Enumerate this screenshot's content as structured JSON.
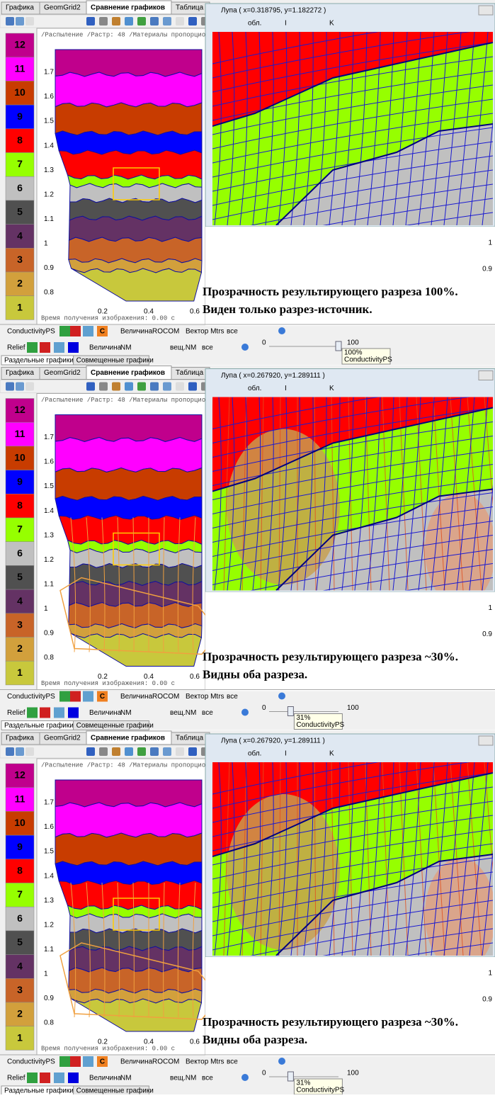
{
  "tabs": [
    "Графика",
    "GeomGrid2",
    "Сравнение графиков",
    "Таблица"
  ],
  "active_tab": 2,
  "plot_header": "/Распыление /Растр: 48 /Материалы пропорционально",
  "x_ticks": [
    0.2,
    0.4,
    0.6
  ],
  "y_ticks": [
    1.7,
    1.6,
    1.5,
    1.4,
    1.3,
    1.2,
    1.1,
    1,
    0.9,
    0.8
  ],
  "time_label": "Время получения изображения: 0.00 с",
  "legend": [
    {
      "label": "12",
      "color": "#c0008c"
    },
    {
      "label": "11",
      "color": "#ff00ff"
    },
    {
      "label": "10",
      "color": "#c83c00"
    },
    {
      "label": "9",
      "color": "#0000ff"
    },
    {
      "label": "8",
      "color": "#ff0000"
    },
    {
      "label": "7",
      "color": "#96ff00"
    },
    {
      "label": "6",
      "color": "#c0c0c0"
    },
    {
      "label": "5",
      "color": "#505050"
    },
    {
      "label": "4",
      "color": "#643264"
    },
    {
      "label": "3",
      "color": "#c86428"
    },
    {
      "label": "2",
      "color": "#d2a03c"
    },
    {
      "label": "1",
      "color": "#c8c83c"
    }
  ],
  "magnifier_toolbar": [
    "обл.",
    "I",
    "K"
  ],
  "magnifier_ticks": [
    1,
    0.9
  ],
  "toolbar1": [
    "ConductivityPS",
    "C",
    "Величина",
    "ROCOM",
    "Вектор Mtrs",
    "все"
  ],
  "toolbar2": [
    "Relief",
    "Величина",
    "NM",
    "вещ.NM",
    "все"
  ],
  "slider_min": 0,
  "slider_max": 100,
  "bottom_tabs": [
    "Раздельные графики",
    "Совмещенные графики"
  ],
  "panels": [
    {
      "title": "Лупа ( x=0.318795, y=1.182272 )",
      "caption": [
        "Прозрачность результирующего разреза 100%.",
        "Виден только разрез-источник."
      ],
      "slider": {
        "value": 100,
        "label": "100%"
      }
    },
    {
      "title": "Лупа ( x=0.267920, y=1.289111 )",
      "caption": [
        "Прозрачность результирующего разреза ~30%.",
        "Видны  оба разреза."
      ],
      "slider": {
        "value": 31,
        "label": "31%"
      }
    },
    {
      "title": "Лупа ( x=0.267920, y=1.289111 )",
      "caption": [
        "Прозрачность результирующего разреза ~30%.",
        "Видны  оба разреза."
      ],
      "slider": {
        "value": 31,
        "label": "31%"
      }
    }
  ]
}
